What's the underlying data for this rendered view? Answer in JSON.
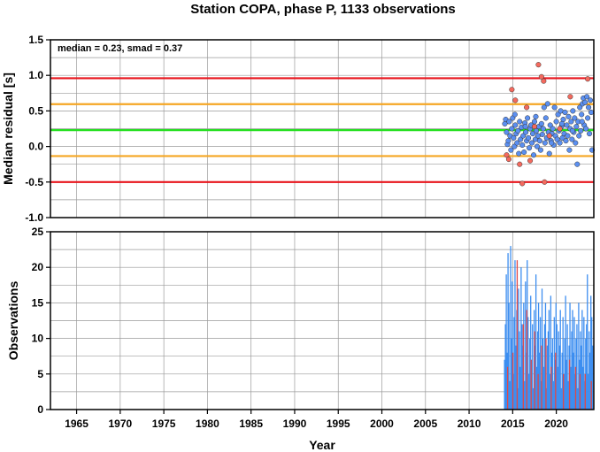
{
  "chart_data": [
    {
      "type": "scatter",
      "title": "Station COPA, phase P, 1133 observations",
      "annotation": "median = 0.23, smad = 0.37",
      "ylabel": "Median residual [s]",
      "xlim": [
        1962,
        2024.3
      ],
      "ylim": [
        -1.0,
        1.5
      ],
      "yticks": [
        "-1.0",
        "-0.5",
        "0.0",
        "0.5",
        "1.0",
        "1.5"
      ],
      "grid": true,
      "hlines": [
        {
          "y": 0.96,
          "color": "#e8141c"
        },
        {
          "y": 0.595,
          "color": "#f5a623"
        },
        {
          "y": 0.23,
          "color": "#22e01e"
        },
        {
          "y": -0.135,
          "color": "#f5a623"
        },
        {
          "y": -0.5,
          "color": "#e8141c"
        }
      ],
      "series": [
        {
          "color": "#5b8ff0",
          "points": [
            [
              2014.1,
              0.32
            ],
            [
              2014.2,
              0.38
            ],
            [
              2014.3,
              0.2
            ],
            [
              2014.4,
              0.03
            ],
            [
              2014.5,
              0.08
            ],
            [
              2014.6,
              0.35
            ],
            [
              2014.7,
              0.15
            ],
            [
              2014.8,
              -0.05
            ],
            [
              2014.9,
              0.25
            ],
            [
              2015.0,
              0.4
            ],
            [
              2015.1,
              0.12
            ],
            [
              2015.2,
              0.0
            ],
            [
              2015.3,
              0.3
            ],
            [
              2015.4,
              0.18
            ],
            [
              2015.5,
              0.05
            ],
            [
              2015.6,
              0.22
            ],
            [
              2015.7,
              -0.1
            ],
            [
              2015.8,
              0.35
            ],
            [
              2015.9,
              0.1
            ],
            [
              2016.0,
              0.27
            ],
            [
              2016.1,
              0.02
            ],
            [
              2016.2,
              0.15
            ],
            [
              2016.3,
              -0.08
            ],
            [
              2016.4,
              0.33
            ],
            [
              2016.5,
              0.2
            ],
            [
              2016.6,
              0.08
            ],
            [
              2016.7,
              0.4
            ],
            [
              2016.8,
              0.12
            ],
            [
              2016.9,
              -0.02
            ],
            [
              2017.0,
              0.25
            ],
            [
              2017.1,
              0.3
            ],
            [
              2017.2,
              0.05
            ],
            [
              2017.3,
              0.18
            ],
            [
              2017.4,
              -0.12
            ],
            [
              2017.5,
              0.35
            ],
            [
              2017.6,
              0.1
            ],
            [
              2017.7,
              0.22
            ],
            [
              2017.8,
              0.0
            ],
            [
              2017.9,
              0.15
            ],
            [
              2018.0,
              0.28
            ],
            [
              2018.1,
              0.08
            ],
            [
              2018.2,
              -0.05
            ],
            [
              2018.3,
              0.32
            ],
            [
              2018.4,
              0.17
            ],
            [
              2018.5,
              0.25
            ],
            [
              2018.6,
              0.55
            ],
            [
              2018.7,
              0.05
            ],
            [
              2018.8,
              0.4
            ],
            [
              2018.9,
              0.12
            ],
            [
              2019.0,
              0.6
            ],
            [
              2019.1,
              0.2
            ],
            [
              2019.2,
              -0.1
            ],
            [
              2019.3,
              0.3
            ],
            [
              2019.4,
              0.08
            ],
            [
              2019.5,
              0.18
            ],
            [
              2019.6,
              0.25
            ],
            [
              2019.7,
              0.02
            ],
            [
              2019.8,
              0.55
            ],
            [
              2019.9,
              0.15
            ],
            [
              2020.0,
              0.35
            ],
            [
              2020.1,
              0.1
            ],
            [
              2020.2,
              0.45
            ],
            [
              2020.3,
              0.22
            ],
            [
              2020.4,
              0.05
            ],
            [
              2020.5,
              0.5
            ],
            [
              2020.6,
              0.28
            ],
            [
              2020.7,
              0.12
            ],
            [
              2020.8,
              0.38
            ],
            [
              2020.9,
              0.18
            ],
            [
              2021.0,
              0.48
            ],
            [
              2021.1,
              0.08
            ],
            [
              2021.2,
              0.3
            ],
            [
              2021.3,
              0.15
            ],
            [
              2021.4,
              0.42
            ],
            [
              2021.5,
              -0.05
            ],
            [
              2021.6,
              0.25
            ],
            [
              2021.7,
              0.35
            ],
            [
              2021.8,
              0.1
            ],
            [
              2021.9,
              0.5
            ],
            [
              2022.0,
              0.2
            ],
            [
              2022.1,
              0.4
            ],
            [
              2022.2,
              0.05
            ],
            [
              2022.3,
              0.28
            ],
            [
              2022.4,
              -0.25
            ],
            [
              2022.5,
              0.35
            ],
            [
              2022.6,
              0.15
            ],
            [
              2022.7,
              0.55
            ],
            [
              2022.8,
              0.22
            ],
            [
              2022.9,
              0.45
            ],
            [
              2023.0,
              0.6
            ],
            [
              2023.1,
              0.68
            ],
            [
              2023.2,
              0.3
            ],
            [
              2023.3,
              0.62
            ],
            [
              2023.4,
              0.25
            ],
            [
              2023.5,
              0.7
            ],
            [
              2023.6,
              0.4
            ],
            [
              2023.7,
              0.55
            ],
            [
              2023.8,
              0.18
            ],
            [
              2023.9,
              0.65
            ],
            [
              2024.0,
              0.48
            ],
            [
              2024.1,
              -0.05
            ],
            [
              2015.25,
              0.45
            ],
            [
              2016.45,
              0.28
            ],
            [
              2017.65,
              0.42
            ],
            [
              2019.45,
              0.05
            ],
            [
              2020.65,
              0.32
            ],
            [
              2021.85,
              0.22
            ],
            [
              2022.95,
              0.35
            ]
          ]
        },
        {
          "color": "#f46a5e",
          "points": [
            [
              2014.3,
              -0.12
            ],
            [
              2014.55,
              -0.18
            ],
            [
              2014.9,
              0.8
            ],
            [
              2015.3,
              0.65
            ],
            [
              2015.8,
              -0.25
            ],
            [
              2016.1,
              -0.52
            ],
            [
              2016.6,
              0.55
            ],
            [
              2017.0,
              -0.2
            ],
            [
              2017.5,
              0.28
            ],
            [
              2017.95,
              1.15
            ],
            [
              2018.3,
              0.98
            ],
            [
              2018.55,
              0.92
            ],
            [
              2018.65,
              -0.5
            ],
            [
              2019.2,
              0.15
            ],
            [
              2020.4,
              0.25
            ],
            [
              2021.6,
              0.7
            ],
            [
              2023.6,
              0.95
            ]
          ]
        }
      ]
    },
    {
      "type": "bar",
      "ylabel": "Observations",
      "xlabel": "Year",
      "xlim": [
        1962,
        2024.3
      ],
      "ylim": [
        0,
        25
      ],
      "xticks": [
        "1965",
        "1970",
        "1975",
        "1980",
        "1985",
        "1990",
        "1995",
        "2000",
        "2005",
        "2010",
        "2015",
        "2020"
      ],
      "yticks": [
        "0",
        "5",
        "10",
        "15",
        "20",
        "25"
      ],
      "grid": true,
      "series": [
        {
          "color": "#3d8ef0",
          "x": [
            2014.0,
            2014.1,
            2014.2,
            2014.3,
            2014.4,
            2014.5,
            2014.6,
            2014.7,
            2014.8,
            2014.9,
            2015.0,
            2015.1,
            2015.2,
            2015.3,
            2015.4,
            2015.5,
            2015.6,
            2015.7,
            2015.8,
            2015.9,
            2016.0,
            2016.1,
            2016.2,
            2016.3,
            2016.4,
            2016.5,
            2016.6,
            2016.7,
            2016.8,
            2016.9,
            2017.0,
            2017.1,
            2017.2,
            2017.3,
            2017.4,
            2017.5,
            2017.6,
            2017.7,
            2017.8,
            2017.9,
            2018.0,
            2018.1,
            2018.2,
            2018.3,
            2018.4,
            2018.5,
            2018.6,
            2018.7,
            2018.8,
            2018.9,
            2019.0,
            2019.1,
            2019.2,
            2019.3,
            2019.4,
            2019.5,
            2019.6,
            2019.7,
            2019.8,
            2019.9,
            2020.0,
            2020.1,
            2020.2,
            2020.3,
            2020.4,
            2020.5,
            2020.6,
            2020.7,
            2020.8,
            2020.9,
            2021.0,
            2021.1,
            2021.2,
            2021.3,
            2021.4,
            2021.5,
            2021.6,
            2021.7,
            2021.8,
            2021.9,
            2022.0,
            2022.1,
            2022.2,
            2022.3,
            2022.4,
            2022.5,
            2022.6,
            2022.7,
            2022.8,
            2022.9,
            2023.0,
            2023.1,
            2023.2,
            2023.3,
            2023.4,
            2023.5,
            2023.6,
            2023.7,
            2023.8,
            2023.9,
            2024.0,
            2024.1,
            2024.2
          ],
          "values": [
            7,
            12,
            19,
            8,
            22,
            15,
            4,
            23,
            10,
            18,
            5,
            13,
            21,
            9,
            14,
            3,
            17,
            11,
            6,
            20,
            12,
            9,
            15,
            4,
            18,
            8,
            21,
            13,
            5,
            10,
            16,
            7,
            12,
            3,
            14,
            9,
            19,
            6,
            11,
            15,
            8,
            13,
            4,
            17,
            10,
            6,
            12,
            15,
            3,
            9,
            11,
            14,
            5,
            16,
            8,
            10,
            4,
            13,
            7,
            15,
            12,
            6,
            11,
            9,
            14,
            3,
            8,
            13,
            5,
            10,
            16,
            7,
            12,
            4,
            9,
            15,
            6,
            11,
            14,
            8,
            13,
            5,
            10,
            12,
            3,
            15,
            7,
            11,
            9,
            14,
            6,
            13,
            4,
            10,
            12,
            19,
            5,
            11,
            8,
            16,
            13,
            9,
            6
          ]
        },
        {
          "color": "#e04848",
          "x": [
            2014.35,
            2014.95,
            2015.45,
            2016.15,
            2016.55,
            2017.05,
            2017.45,
            2017.85,
            2018.25,
            2018.75,
            2019.35,
            2019.85,
            2020.75,
            2021.45,
            2022.15,
            2022.65,
            2023.25,
            2023.95
          ],
          "values": [
            6,
            8,
            21,
            12,
            14,
            7,
            11,
            5,
            9,
            10,
            6,
            8,
            5,
            7,
            6,
            5,
            5,
            4
          ]
        }
      ]
    }
  ]
}
